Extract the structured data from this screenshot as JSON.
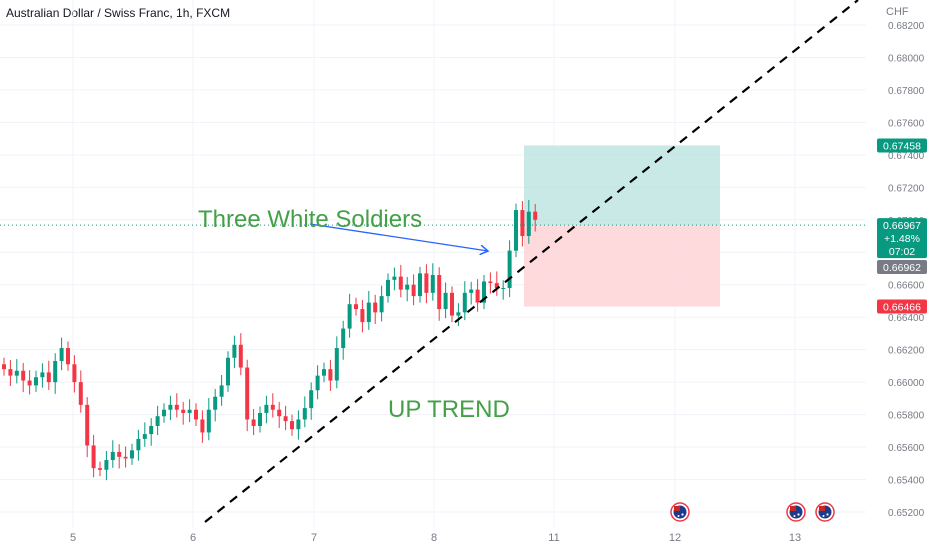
{
  "header": {
    "title": "Australian Dollar / Swiss Franc, 1h, FXCM",
    "currency": "CHF"
  },
  "colors": {
    "up": "#089981",
    "down": "#f23645",
    "grid": "#f0f3fa",
    "trendline": "#000000",
    "annotation_green": "#43a047",
    "arrow": "#2962ff",
    "target_zone": "#b2dfdb",
    "stop_zone": "#ffcdd2",
    "current_price_tag": "#089981",
    "bid_tag": "#787b86",
    "stop_tag": "#f23645"
  },
  "chart_data": {
    "type": "candlestick",
    "title": "Australian Dollar / Swiss Franc, 1h, FXCM",
    "x_ticks": [
      "5",
      "6",
      "7",
      "8",
      "11",
      "12",
      "13"
    ],
    "y_ticks": [
      "0.68200",
      "0.68000",
      "0.67800",
      "0.67600",
      "0.67400",
      "0.67200",
      "0.67000",
      "0.66800",
      "0.66600",
      "0.66400",
      "0.66200",
      "0.66000",
      "0.65800",
      "0.65600",
      "0.65400",
      "0.65200"
    ],
    "ylim": [
      0.651,
      0.684
    ],
    "grid": true,
    "close_path": [
      [
        0,
        0.6608
      ],
      [
        1,
        0.6604
      ],
      [
        2,
        0.6607
      ],
      [
        3,
        0.6601
      ],
      [
        4,
        0.6598
      ],
      [
        5,
        0.6603
      ],
      [
        6,
        0.6606
      ],
      [
        7,
        0.66
      ],
      [
        8,
        0.6613
      ],
      [
        9,
        0.6621
      ],
      [
        10,
        0.6611
      ],
      [
        11,
        0.66
      ],
      [
        12,
        0.6586
      ],
      [
        13,
        0.6561
      ],
      [
        14,
        0.6547
      ],
      [
        15,
        0.6546
      ],
      [
        16,
        0.6552
      ],
      [
        17,
        0.6557
      ],
      [
        18,
        0.6554
      ],
      [
        19,
        0.6553
      ],
      [
        20,
        0.6558
      ],
      [
        21,
        0.6565
      ],
      [
        22,
        0.6568
      ],
      [
        23,
        0.6573
      ],
      [
        24,
        0.6579
      ],
      [
        25,
        0.6583
      ],
      [
        26,
        0.6586
      ],
      [
        27,
        0.6583
      ],
      [
        28,
        0.6581
      ],
      [
        29,
        0.6583
      ],
      [
        30,
        0.6577
      ],
      [
        31,
        0.6569
      ],
      [
        32,
        0.6583
      ],
      [
        33,
        0.6591
      ],
      [
        34,
        0.6598
      ],
      [
        35,
        0.6615
      ],
      [
        36,
        0.6623
      ],
      [
        37,
        0.6609
      ],
      [
        38,
        0.6577
      ],
      [
        39,
        0.6573
      ],
      [
        40,
        0.6581
      ],
      [
        41,
        0.6586
      ],
      [
        42,
        0.6583
      ],
      [
        43,
        0.6579
      ],
      [
        44,
        0.6576
      ],
      [
        45,
        0.6571
      ],
      [
        46,
        0.6577
      ],
      [
        47,
        0.6584
      ],
      [
        48,
        0.6595
      ],
      [
        49,
        0.6604
      ],
      [
        50,
        0.6608
      ],
      [
        51,
        0.6601
      ],
      [
        52,
        0.6621
      ],
      [
        53,
        0.6633
      ],
      [
        54,
        0.6648
      ],
      [
        55,
        0.6645
      ],
      [
        56,
        0.6637
      ],
      [
        57,
        0.6649
      ],
      [
        58,
        0.6643
      ],
      [
        59,
        0.6653
      ],
      [
        60,
        0.6663
      ],
      [
        61,
        0.6665
      ],
      [
        62,
        0.6657
      ],
      [
        63,
        0.666
      ],
      [
        64,
        0.6653
      ],
      [
        65,
        0.6667
      ],
      [
        66,
        0.6655
      ],
      [
        67,
        0.6666
      ],
      [
        68,
        0.6645
      ],
      [
        69,
        0.6655
      ],
      [
        70,
        0.6641
      ],
      [
        71,
        0.6643
      ],
      [
        72,
        0.6655
      ],
      [
        73,
        0.6657
      ],
      [
        74,
        0.6649
      ],
      [
        75,
        0.6662
      ],
      [
        76,
        0.6661
      ],
      [
        77,
        0.6658
      ],
      [
        78,
        0.6658
      ],
      [
        79,
        0.6681
      ],
      [
        80,
        0.6706
      ],
      [
        81,
        0.669
      ],
      [
        82,
        0.6705
      ],
      [
        83,
        0.67
      ]
    ],
    "levels": {
      "take_profit": "0.67458",
      "current": "0.66967",
      "change": "+1.48%",
      "countdown": "07:02",
      "bid": "0.66962",
      "stop_loss": "0.66466"
    },
    "annotations": {
      "pattern": "Three White Soldiers",
      "trend": "UP TREND"
    }
  }
}
